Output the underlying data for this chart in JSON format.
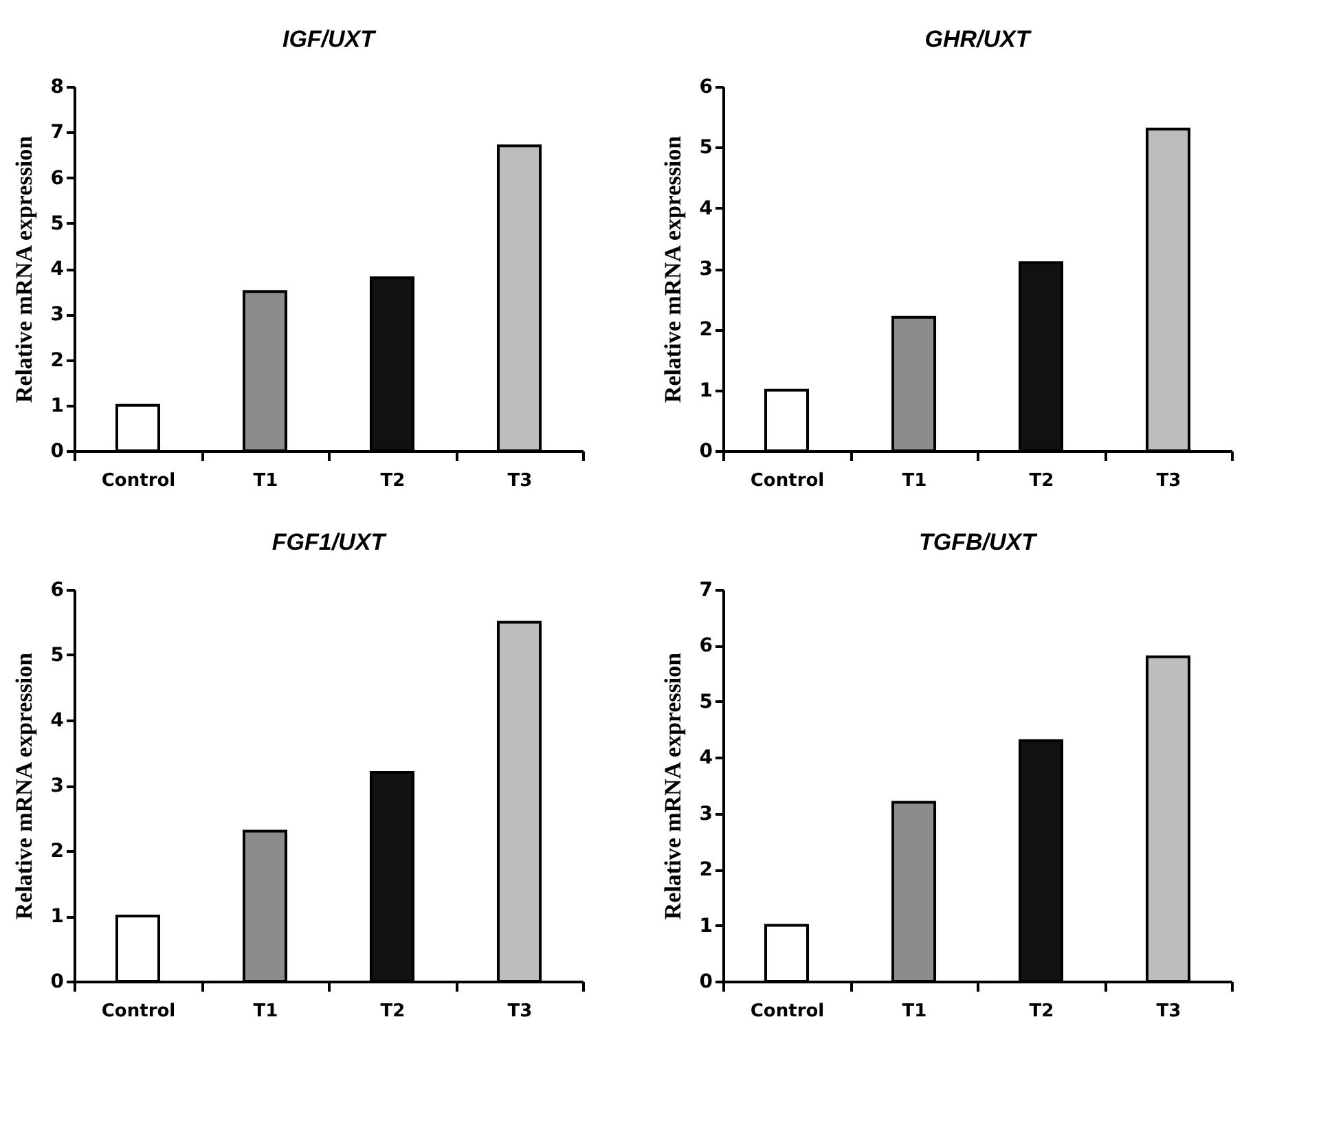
{
  "chart_data": [
    {
      "type": "bar",
      "title": "IGF/UXT",
      "ylabel": "Relative mRNA expression",
      "categories": [
        "Control",
        "T1",
        "T2",
        "T3"
      ],
      "values": [
        1,
        3.5,
        3.8,
        6.7
      ],
      "colors": [
        "#ffffff",
        "#8c8c8c",
        "#111111",
        "#bdbdbd"
      ],
      "ylim": [
        0,
        8
      ],
      "yticks": [
        0,
        1,
        2,
        3,
        4,
        5,
        6,
        7,
        8
      ]
    },
    {
      "type": "bar",
      "title": "GHR/UXT",
      "ylabel": "Relative mRNA expression",
      "categories": [
        "Control",
        "T1",
        "T2",
        "T3"
      ],
      "values": [
        1,
        2.2,
        3.1,
        5.3
      ],
      "colors": [
        "#ffffff",
        "#8c8c8c",
        "#111111",
        "#bdbdbd"
      ],
      "ylim": [
        0,
        6
      ],
      "yticks": [
        0,
        1,
        2,
        3,
        4,
        5,
        6
      ]
    },
    {
      "type": "bar",
      "title": "FGF1/UXT",
      "ylabel": "Relative mRNA expression",
      "categories": [
        "Control",
        "T1",
        "T2",
        "T3"
      ],
      "values": [
        1,
        2.3,
        3.2,
        5.5
      ],
      "colors": [
        "#ffffff",
        "#8c8c8c",
        "#111111",
        "#bdbdbd"
      ],
      "ylim": [
        0,
        6
      ],
      "yticks": [
        0,
        1,
        2,
        3,
        4,
        5,
        6
      ]
    },
    {
      "type": "bar",
      "title": "TGFB/UXT",
      "ylabel": "Relative mRNA expression",
      "categories": [
        "Control",
        "T1",
        "T2",
        "T3"
      ],
      "values": [
        1,
        3.2,
        4.3,
        5.8
      ],
      "colors": [
        "#ffffff",
        "#8c8c8c",
        "#111111",
        "#bdbdbd"
      ],
      "ylim": [
        0,
        7
      ],
      "yticks": [
        0,
        1,
        2,
        3,
        4,
        5,
        6,
        7
      ]
    }
  ]
}
